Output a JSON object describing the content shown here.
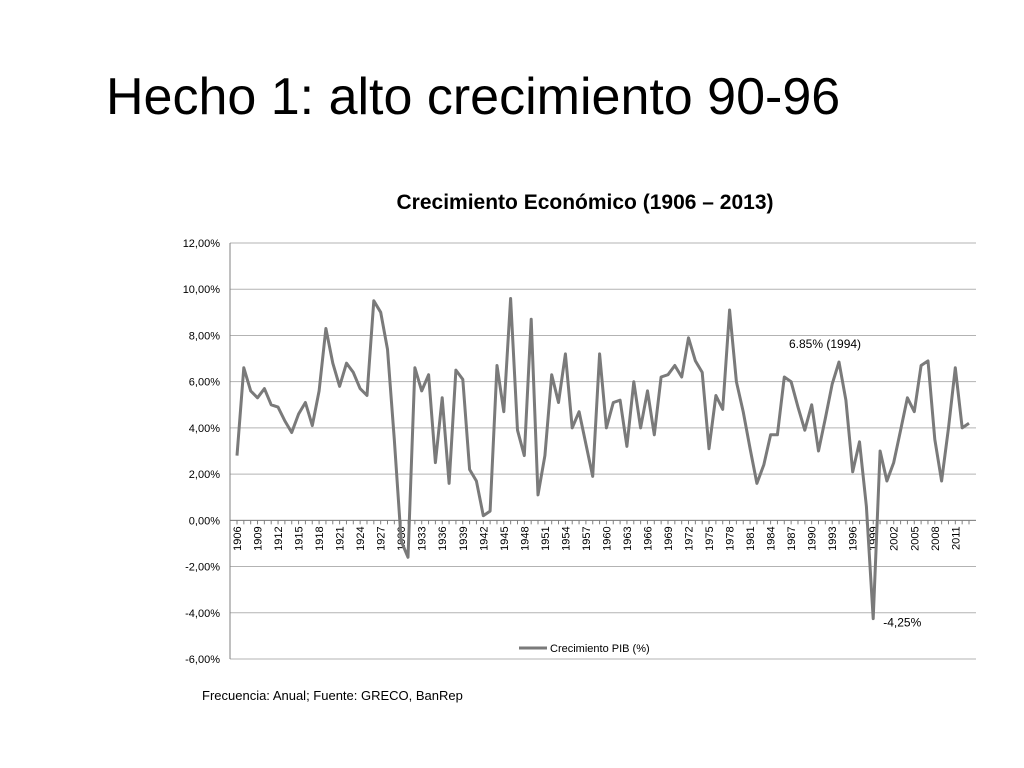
{
  "slide": {
    "title": "Hecho 1: alto crecimiento 90-96",
    "source": "Frecuencia: Anual; Fuente: GRECO, BanRep"
  },
  "colors": {
    "line": "#7a7a7a",
    "grid": "#b3b3b3",
    "axis": "#808080"
  },
  "chart_data": {
    "type": "line",
    "title": "Crecimiento Económico (1906 – 2013)",
    "xlabel": "",
    "ylabel": "",
    "ylim": [
      -6,
      12
    ],
    "yticks": [
      "12,00%",
      "10,00%",
      "8,00%",
      "6,00%",
      "4,00%",
      "2,00%",
      "0,00%",
      "-2,00%",
      "-4,00%",
      "-6,00%"
    ],
    "xticks": [
      "1906",
      "1909",
      "1912",
      "1915",
      "1918",
      "1921",
      "1924",
      "1927",
      "1930",
      "1933",
      "1936",
      "1939",
      "1942",
      "1945",
      "1948",
      "1951",
      "1954",
      "1957",
      "1960",
      "1963",
      "1966",
      "1969",
      "1972",
      "1975",
      "1978",
      "1981",
      "1984",
      "1987",
      "1990",
      "1993",
      "1996",
      "1999",
      "2002",
      "2005",
      "2008",
      "2011"
    ],
    "grid": true,
    "legend_position": "bottom",
    "series": [
      {
        "name": "Crecimiento PIB (%)",
        "x": [
          1906,
          1907,
          1908,
          1909,
          1910,
          1911,
          1912,
          1913,
          1914,
          1915,
          1916,
          1917,
          1918,
          1919,
          1920,
          1921,
          1922,
          1923,
          1924,
          1925,
          1926,
          1927,
          1928,
          1929,
          1930,
          1931,
          1932,
          1933,
          1934,
          1935,
          1936,
          1937,
          1938,
          1939,
          1940,
          1941,
          1942,
          1943,
          1944,
          1945,
          1946,
          1947,
          1948,
          1949,
          1950,
          1951,
          1952,
          1953,
          1954,
          1955,
          1956,
          1957,
          1958,
          1959,
          1960,
          1961,
          1962,
          1963,
          1964,
          1965,
          1966,
          1967,
          1968,
          1969,
          1970,
          1971,
          1972,
          1973,
          1974,
          1975,
          1976,
          1977,
          1978,
          1979,
          1980,
          1981,
          1982,
          1983,
          1984,
          1985,
          1986,
          1987,
          1988,
          1989,
          1990,
          1991,
          1992,
          1993,
          1994,
          1995,
          1996,
          1997,
          1998,
          1999,
          2000,
          2001,
          2002,
          2003,
          2004,
          2005,
          2006,
          2007,
          2008,
          2009,
          2010,
          2011,
          2012,
          2013
        ],
        "values": [
          2.8,
          6.6,
          5.6,
          5.3,
          5.7,
          5.0,
          4.9,
          4.3,
          3.8,
          4.6,
          5.1,
          4.1,
          5.6,
          8.3,
          6.8,
          5.8,
          6.8,
          6.4,
          5.7,
          5.4,
          9.5,
          9.0,
          7.4,
          3.5,
          -0.9,
          -1.6,
          6.6,
          5.6,
          6.3,
          2.5,
          5.3,
          1.6,
          6.5,
          6.1,
          2.2,
          1.7,
          0.2,
          0.4,
          6.7,
          4.7,
          9.6,
          3.9,
          2.8,
          8.7,
          1.1,
          2.8,
          6.3,
          5.1,
          7.2,
          4.0,
          4.7,
          3.3,
          1.9,
          7.2,
          4.0,
          5.1,
          5.2,
          3.2,
          6.0,
          4.0,
          5.6,
          3.7,
          6.2,
          6.3,
          6.7,
          6.2,
          7.9,
          6.9,
          6.4,
          3.1,
          5.4,
          4.8,
          9.1,
          6.0,
          4.7,
          3.1,
          1.6,
          2.4,
          3.7,
          3.7,
          6.2,
          6.0,
          4.9,
          3.9,
          5.0,
          3.0,
          4.4,
          5.9,
          6.85,
          5.2,
          2.1,
          3.4,
          0.6,
          -4.25,
          3.0,
          1.7,
          2.5,
          3.9,
          5.3,
          4.7,
          6.7,
          6.9,
          3.5,
          1.7,
          4.0,
          6.6,
          4.0,
          4.2
        ]
      }
    ],
    "annotations": [
      {
        "text": "6.85% (1994)",
        "x": 1994,
        "y": 6.85
      },
      {
        "text": "-4,25%",
        "x": 1999,
        "y": -4.25
      }
    ]
  }
}
